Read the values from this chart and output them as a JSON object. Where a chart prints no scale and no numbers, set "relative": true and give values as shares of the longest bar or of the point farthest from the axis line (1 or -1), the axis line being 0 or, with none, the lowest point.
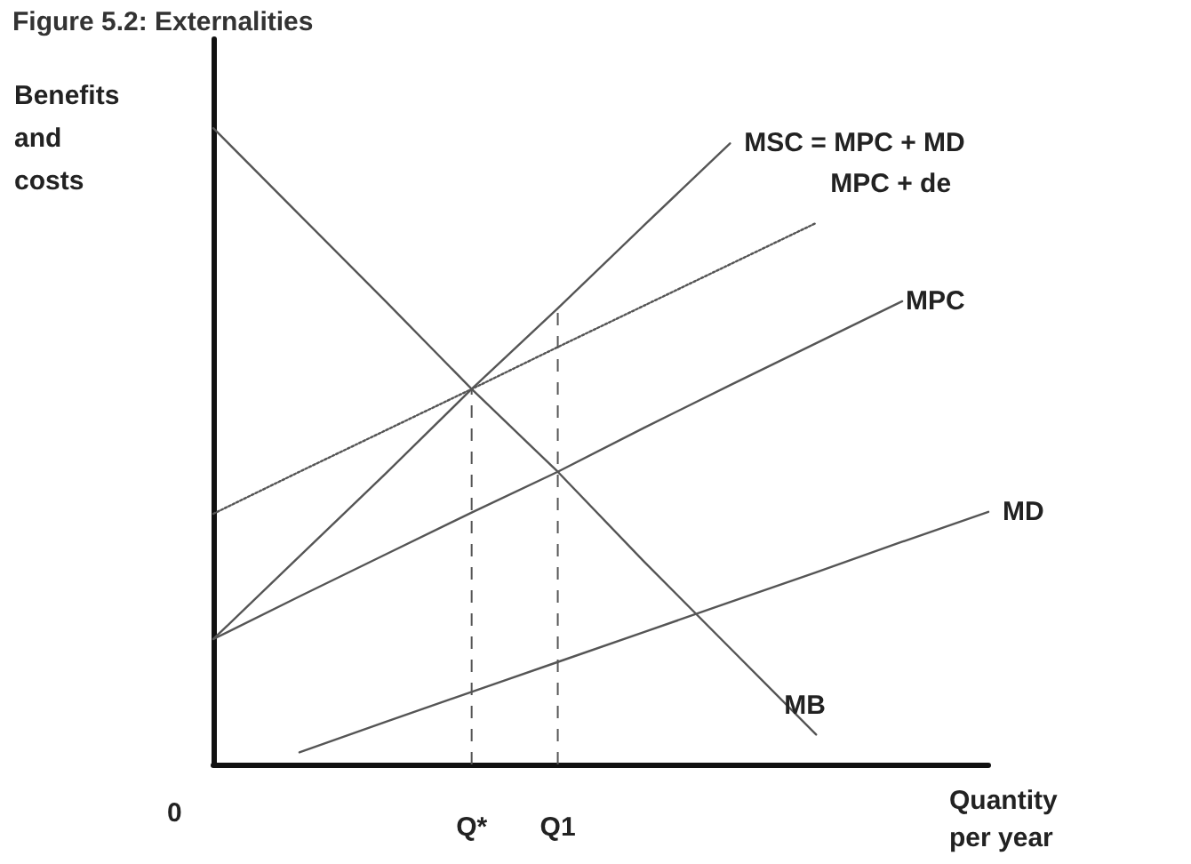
{
  "chart_data": {
    "type": "line",
    "relative": true,
    "title": "Figure 5.2: Externalities",
    "xlabel": "Quantity per year",
    "ylabel": "Benefits and costs",
    "annotations": [
      "0"
    ],
    "categories": [
      null,
      null,
      null,
      "Q*",
      "Q1",
      null,
      null,
      null,
      null,
      null
    ],
    "series": [
      {
        "name": "MSC = MPC + MD",
        "color": "#555555",
        "values": [
          0.197,
          0.327,
          0.457,
          0.59,
          0.717,
          0.847,
          0.976,
          null,
          null,
          null
        ]
      },
      {
        "name": "MPC + de",
        "color": "#555555",
        "line_style": "dotted",
        "values": [
          0.394,
          0.46,
          0.525,
          0.59,
          0.656,
          0.721,
          0.786,
          0.851,
          null,
          null
        ]
      },
      {
        "name": "MPC",
        "color": "#555555",
        "values": [
          0.197,
          0.264,
          0.33,
          0.396,
          0.46,
          0.529,
          0.596,
          0.662,
          0.728,
          null
        ]
      },
      {
        "name": "MD",
        "color": "#555555",
        "values": [
          null,
          0.019,
          0.067,
          0.114,
          0.161,
          0.208,
          0.255,
          0.302,
          0.35,
          0.397
        ]
      },
      {
        "name": "MB",
        "color": "#555555",
        "values": [
          1.0,
          0.864,
          0.728,
          0.59,
          0.46,
          0.319,
          0.183,
          0.047,
          null,
          null
        ]
      }
    ],
    "ref_lines": [
      {
        "axis": "x",
        "value": "Q*",
        "line_style": "dashed",
        "color": "#555555"
      },
      {
        "axis": "x",
        "value": "Q1",
        "line_style": "dashed",
        "color": "#555555"
      }
    ],
    "line_style": "solid",
    "marker": "none",
    "grid": false,
    "legend": false,
    "tick_labels": "x"
  }
}
